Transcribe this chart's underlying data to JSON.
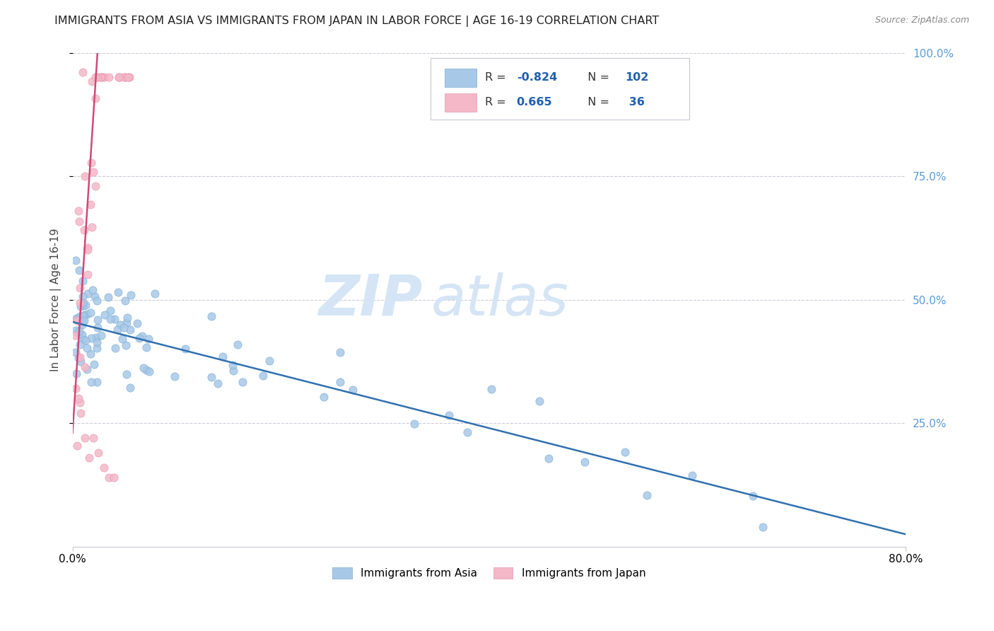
{
  "title": "IMMIGRANTS FROM ASIA VS IMMIGRANTS FROM JAPAN IN LABOR FORCE | AGE 16-19 CORRELATION CHART",
  "source": "Source: ZipAtlas.com",
  "ylabel": "In Labor Force | Age 16-19",
  "right_yticks": [
    "100.0%",
    "75.0%",
    "50.0%",
    "25.0%"
  ],
  "right_ytick_vals": [
    1.0,
    0.75,
    0.5,
    0.25
  ],
  "watermark_zip": "ZIP",
  "watermark_atlas": "atlas",
  "legend_blue_r": "R = -0.824",
  "legend_blue_n": "N = 102",
  "legend_pink_r": "R =  0.665",
  "legend_pink_n": "N =  36",
  "legend_label_blue": "Immigrants from Asia",
  "legend_label_pink": "Immigrants from Japan",
  "blue_color": "#a8c8e8",
  "pink_color": "#f4b8c8",
  "blue_edge_color": "#7aaed0",
  "pink_edge_color": "#e898b0",
  "blue_line_color": "#3070b0",
  "pink_line_color": "#d04878",
  "blue_line_x": [
    0.0,
    0.8
  ],
  "blue_line_y": [
    0.455,
    0.025
  ],
  "pink_line_x": [
    0.0,
    0.024
  ],
  "pink_line_y": [
    0.23,
    1.0
  ],
  "xmin": 0.0,
  "xmax": 0.8,
  "ymin": 0.0,
  "ymax": 1.0,
  "grid_color": "#c8c8d8",
  "bg_color": "#ffffff",
  "title_fontsize": 11.5,
  "source_fontsize": 9,
  "watermark_fontsize_zip": 58,
  "watermark_fontsize_atlas": 58,
  "watermark_color": "#d5e5f5",
  "seed": 123
}
